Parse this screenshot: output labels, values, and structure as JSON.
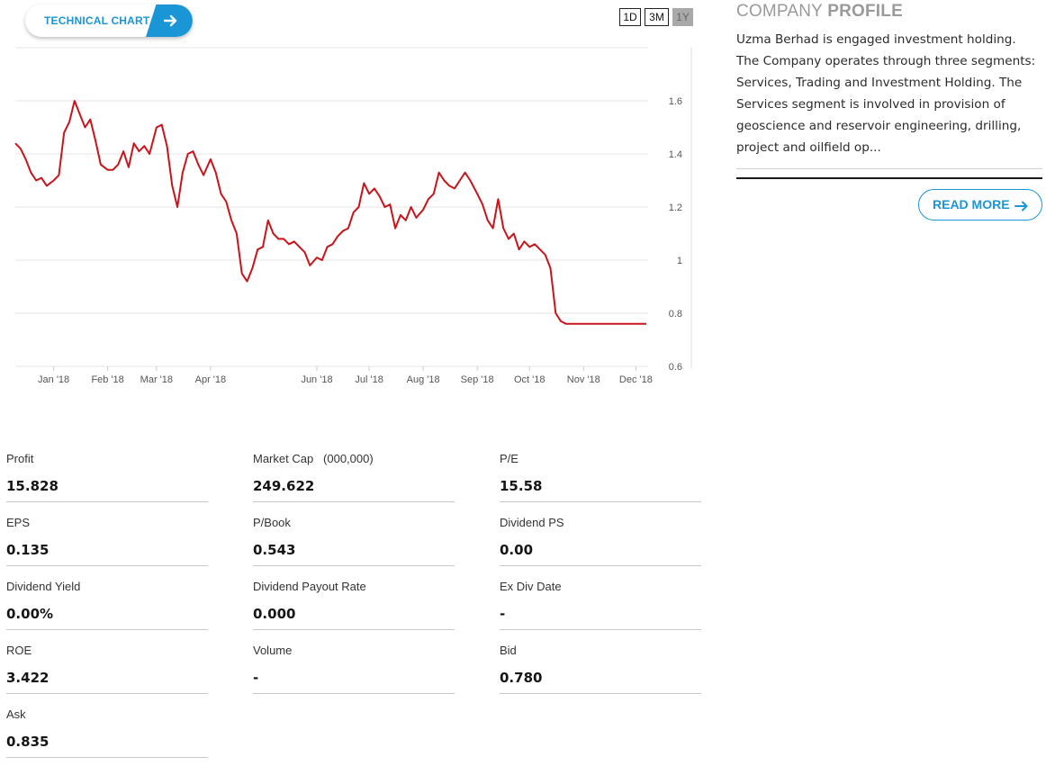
{
  "technical_chart": {
    "label": "TECHNICAL CHART"
  },
  "range_buttons": [
    {
      "label": "1D",
      "active": false
    },
    {
      "label": "3M",
      "active": false
    },
    {
      "label": "1Y",
      "active": true
    }
  ],
  "chart_data": {
    "type": "line",
    "title": "",
    "xlabel": "",
    "ylabel": "",
    "ylim": [
      0.6,
      1.8
    ],
    "yticks": [
      "1.6",
      "1.4",
      "1.2",
      "1",
      "0.8",
      "0.6"
    ],
    "ytick_values": [
      1.6,
      1.4,
      1.2,
      1.0,
      0.8,
      0.6
    ],
    "xtick_labels": [
      "Jan '18",
      "Feb '18",
      "Mar '18",
      "Apr '18",
      "Jun '18",
      "Jul '18",
      "Aug '18",
      "Sep '18",
      "Oct '18",
      "Nov '18",
      "Dec '18"
    ],
    "xtick_dates": [
      "2018-01-01",
      "2018-02-01",
      "2018-03-01",
      "2018-04-01",
      "2018-06-01",
      "2018-07-01",
      "2018-08-01",
      "2018-09-01",
      "2018-10-01",
      "2018-11-01",
      "2018-12-01"
    ],
    "grid": true,
    "line_color": "#c8141b",
    "series": [
      {
        "x": [
          "2017-12-10",
          "2017-12-13",
          "2017-12-16",
          "2017-12-19",
          "2017-12-22",
          "2017-12-25",
          "2017-12-28",
          "2018-01-01",
          "2018-01-04",
          "2018-01-07",
          "2018-01-10",
          "2018-01-13",
          "2018-01-16",
          "2018-01-19",
          "2018-01-22",
          "2018-01-25",
          "2018-01-28",
          "2018-02-01",
          "2018-02-04",
          "2018-02-07",
          "2018-02-10",
          "2018-02-13",
          "2018-02-16",
          "2018-02-19",
          "2018-02-22",
          "2018-02-25",
          "2018-03-01",
          "2018-03-04",
          "2018-03-07",
          "2018-03-10",
          "2018-03-13",
          "2018-03-16",
          "2018-03-19",
          "2018-03-22",
          "2018-03-25",
          "2018-03-28",
          "2018-04-01",
          "2018-04-04",
          "2018-04-07",
          "2018-04-10",
          "2018-04-13",
          "2018-04-16",
          "2018-04-19",
          "2018-04-22",
          "2018-04-25",
          "2018-04-28",
          "2018-05-01",
          "2018-05-04",
          "2018-05-07",
          "2018-05-10",
          "2018-05-13",
          "2018-05-16",
          "2018-05-19",
          "2018-05-22",
          "2018-05-25",
          "2018-05-28",
          "2018-06-01",
          "2018-06-04",
          "2018-06-07",
          "2018-06-10",
          "2018-06-13",
          "2018-06-16",
          "2018-06-19",
          "2018-06-22",
          "2018-06-25",
          "2018-06-28",
          "2018-07-01",
          "2018-07-04",
          "2018-07-07",
          "2018-07-10",
          "2018-07-13",
          "2018-07-16",
          "2018-07-19",
          "2018-07-22",
          "2018-07-25",
          "2018-07-28",
          "2018-08-01",
          "2018-08-04",
          "2018-08-07",
          "2018-08-10",
          "2018-08-13",
          "2018-08-16",
          "2018-08-19",
          "2018-08-22",
          "2018-08-25",
          "2018-08-28",
          "2018-09-01",
          "2018-09-04",
          "2018-09-07",
          "2018-09-10",
          "2018-09-13",
          "2018-09-16",
          "2018-09-19",
          "2018-09-22",
          "2018-09-25",
          "2018-09-28",
          "2018-10-01",
          "2018-10-04",
          "2018-10-07",
          "2018-10-10",
          "2018-10-13",
          "2018-10-16",
          "2018-10-19",
          "2018-10-22",
          "2018-10-25",
          "2018-10-28",
          "2018-11-01",
          "2018-11-04",
          "2018-11-07",
          "2018-11-10",
          "2018-11-13",
          "2018-11-16",
          "2018-11-19",
          "2018-11-22",
          "2018-11-25",
          "2018-11-28",
          "2018-12-01",
          "2018-12-03",
          "2018-12-05",
          "2018-12-07"
        ],
        "y": [
          1.44,
          1.42,
          1.38,
          1.33,
          1.3,
          1.31,
          1.28,
          1.3,
          1.32,
          1.48,
          1.52,
          1.6,
          1.55,
          1.5,
          1.53,
          1.45,
          1.36,
          1.34,
          1.34,
          1.36,
          1.41,
          1.35,
          1.44,
          1.41,
          1.43,
          1.4,
          1.5,
          1.51,
          1.43,
          1.28,
          1.2,
          1.33,
          1.4,
          1.41,
          1.36,
          1.32,
          1.38,
          1.33,
          1.25,
          1.22,
          1.15,
          1.1,
          0.95,
          0.92,
          0.97,
          1.04,
          1.05,
          1.15,
          1.1,
          1.08,
          1.08,
          1.06,
          1.07,
          1.05,
          1.03,
          0.98,
          1.01,
          1.0,
          1.05,
          1.06,
          1.09,
          1.11,
          1.12,
          1.18,
          1.2,
          1.29,
          1.25,
          1.27,
          1.24,
          1.2,
          1.21,
          1.12,
          1.17,
          1.15,
          1.2,
          1.16,
          1.19,
          1.23,
          1.25,
          1.33,
          1.3,
          1.28,
          1.27,
          1.3,
          1.33,
          1.3,
          1.25,
          1.21,
          1.15,
          1.12,
          1.23,
          1.12,
          1.08,
          1.1,
          1.04,
          1.07,
          1.05,
          1.06,
          1.04,
          1.02,
          0.97,
          0.8,
          0.77,
          0.76,
          0.76,
          0.76,
          0.76,
          0.76,
          0.76,
          0.76,
          0.76,
          0.76,
          0.76,
          0.76,
          0.76,
          0.76,
          0.76,
          0.76,
          0.76,
          0.76
        ]
      }
    ]
  },
  "company_profile": {
    "title_light": "COMPANY",
    "title_bold": "PROFILE",
    "description": "Uzma Berhad is engaged investment holding. The Company operates through three segments: Services, Trading and Investment Holding. The Services segment is involved in provision of geoscience and reservoir engineering, drilling, project and oilfield op...",
    "read_more": "READ MORE"
  },
  "stats": [
    {
      "label": "Profit",
      "value": "15.828"
    },
    {
      "label": "Market Cap   (000,000)",
      "value": "249.622"
    },
    {
      "label": "P/E",
      "value": "15.58"
    },
    {
      "label": "EPS",
      "value": "0.135"
    },
    {
      "label": "P/Book",
      "value": "0.543"
    },
    {
      "label": "Dividend PS",
      "value": "0.00"
    },
    {
      "label": "Dividend Yield",
      "value": "0.00%"
    },
    {
      "label": "Dividend Payout Rate",
      "value": "0.000"
    },
    {
      "label": "Ex Div Date",
      "value": "-"
    },
    {
      "label": "ROE",
      "value": "3.422"
    },
    {
      "label": "Volume",
      "value": "-"
    },
    {
      "label": "Bid",
      "value": "0.780"
    },
    {
      "label": "Ask",
      "value": "0.835"
    }
  ]
}
